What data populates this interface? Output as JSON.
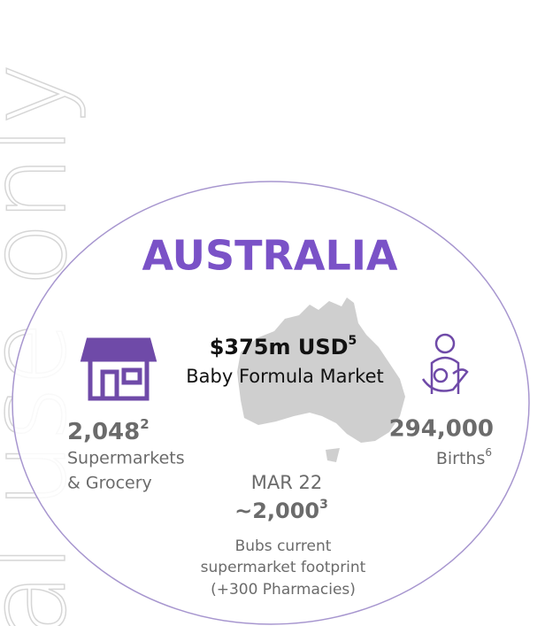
{
  "watermark": "al use only",
  "title": "AUSTRALIA",
  "market": {
    "value": "$375m USD",
    "note": "5",
    "label": "Baby Formula Market"
  },
  "supermarkets": {
    "value": "2,048",
    "note": "2",
    "label": [
      "Supermarkets",
      "& Grocery"
    ]
  },
  "births": {
    "value": "294,000",
    "note": "6",
    "label": "Births"
  },
  "footprint": {
    "date": "MAR 22",
    "value": "~2,000",
    "note": "3",
    "label": [
      "Bubs current",
      "supermarket footprint",
      "(+300 Pharmacies)"
    ]
  }
}
